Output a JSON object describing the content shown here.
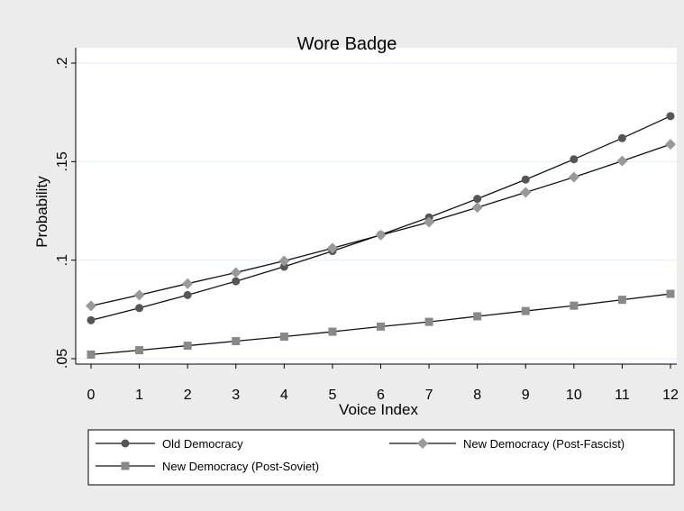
{
  "chart_data": {
    "type": "line",
    "title": "Wore Badge",
    "xlabel": "Voice Index",
    "ylabel": "Probability",
    "x": [
      0,
      1,
      2,
      3,
      4,
      5,
      6,
      7,
      8,
      9,
      10,
      11,
      12
    ],
    "xlim": [
      0,
      12
    ],
    "ylim": [
      0.05,
      0.2
    ],
    "yticks": [
      0.05,
      0.1,
      0.15,
      0.2
    ],
    "ytick_labels": [
      ".05",
      ".1",
      ".15",
      ".2"
    ],
    "grid": "horizontal",
    "legend_position": "bottom",
    "series": [
      {
        "name": "Old Democracy",
        "marker": "circle",
        "color": "#555555",
        "values": [
          0.0695,
          0.0757,
          0.0823,
          0.0893,
          0.0967,
          0.1046,
          0.1129,
          0.1217,
          0.1311,
          0.1409,
          0.1512,
          0.1619,
          0.1731
        ]
      },
      {
        "name": "New Democracy (Post-Fascist)",
        "marker": "diamond",
        "color": "#999999",
        "values": [
          0.0768,
          0.0823,
          0.0881,
          0.0937,
          0.0996,
          0.1061,
          0.1127,
          0.1193,
          0.1267,
          0.1344,
          0.1421,
          0.1503,
          0.1588
        ]
      },
      {
        "name": "New Democracy (Post-Soviet)",
        "marker": "square",
        "color": "#888888",
        "values": [
          0.0521,
          0.0543,
          0.0566,
          0.0589,
          0.0612,
          0.0637,
          0.0663,
          0.0687,
          0.0715,
          0.0742,
          0.0769,
          0.0799,
          0.0829
        ]
      }
    ]
  }
}
